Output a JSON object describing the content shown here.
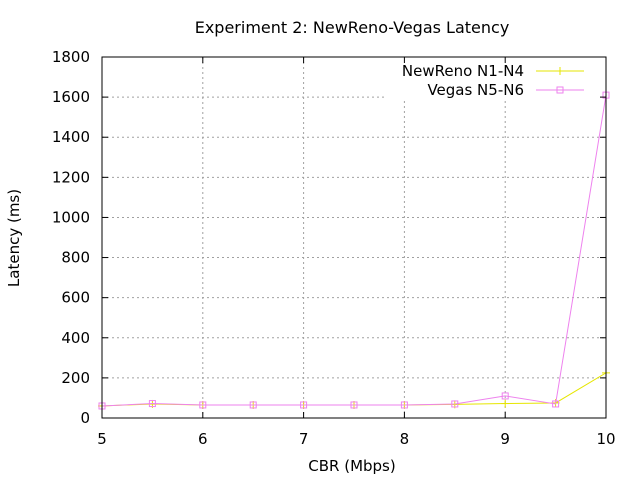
{
  "chart_data": {
    "type": "line",
    "title": "Experiment 2: NewReno-Vegas Latency",
    "xlabel": "CBR (Mbps)",
    "ylabel": "Latency (ms)",
    "xlim": [
      5,
      10
    ],
    "ylim": [
      0,
      1800
    ],
    "x_ticks": [
      5,
      6,
      7,
      8,
      9,
      10
    ],
    "y_ticks": [
      0,
      200,
      400,
      600,
      800,
      1000,
      1200,
      1400,
      1600,
      1800
    ],
    "grid": true,
    "legend_position": "top-right",
    "x": [
      5,
      5.5,
      6,
      6.5,
      7,
      7.5,
      8,
      8.5,
      9,
      9.5,
      10
    ],
    "series": [
      {
        "name": "NewReno N1-N4",
        "color": "#e6e600",
        "marker": "plus",
        "values": [
          60,
          70,
          65,
          65,
          65,
          65,
          65,
          68,
          72,
          75,
          225
        ]
      },
      {
        "name": "Vegas N5-N6",
        "color": "#ee82ee",
        "marker": "square",
        "values": [
          60,
          72,
          65,
          65,
          65,
          65,
          65,
          70,
          110,
          70,
          1610
        ]
      }
    ]
  }
}
